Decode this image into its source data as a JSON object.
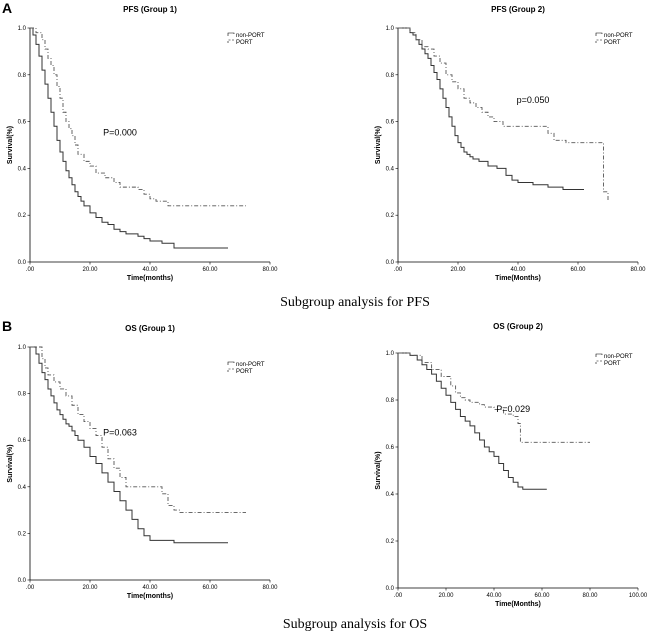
{
  "panels": [
    {
      "letter": "A"
    },
    {
      "letter": "B"
    }
  ],
  "captions": [
    "Subgroup analysis for PFS",
    "Subgroup analysis for OS"
  ],
  "chart_data": [
    {
      "type": "line",
      "title": "PFS (Group 1)",
      "xlabel": "Time(months)",
      "ylabel": "Survival(%)",
      "xlim": [
        0,
        80
      ],
      "ylim": [
        0,
        1
      ],
      "xticks": [
        ".00",
        "20.00",
        "40.00",
        "60.00",
        "80.00"
      ],
      "xtick_values": [
        0,
        20,
        40,
        60,
        80
      ],
      "yticks": [
        "0.0",
        "0.2",
        "0.4",
        "0.6",
        "0.8",
        "1.0"
      ],
      "ytick_values": [
        0,
        0.2,
        0.4,
        0.6,
        0.8,
        1.0
      ],
      "pvalue": "P=0.000",
      "pvalue_at": [
        30,
        0.54
      ],
      "legend": [
        "non-PORT",
        "PORT"
      ],
      "series": [
        {
          "name": "non-PORT",
          "style": "solid",
          "x": [
            0,
            1,
            2,
            3,
            4,
            5,
            6,
            7,
            8,
            9,
            10,
            11,
            12,
            13,
            14,
            15,
            16,
            17,
            18,
            20,
            22,
            24,
            26,
            28,
            30,
            32,
            34,
            36,
            38,
            40,
            44,
            48,
            66
          ],
          "y": [
            1.0,
            0.97,
            0.93,
            0.88,
            0.82,
            0.76,
            0.7,
            0.64,
            0.58,
            0.52,
            0.47,
            0.43,
            0.39,
            0.36,
            0.33,
            0.3,
            0.28,
            0.26,
            0.24,
            0.21,
            0.19,
            0.17,
            0.16,
            0.14,
            0.13,
            0.12,
            0.12,
            0.11,
            0.1,
            0.09,
            0.08,
            0.06,
            0.06
          ]
        },
        {
          "name": "PORT",
          "style": "dashdot",
          "x": [
            0,
            2,
            4,
            5,
            6,
            7,
            8,
            9,
            10,
            11,
            12,
            13,
            14,
            15,
            16,
            18,
            20,
            22,
            25,
            28,
            30,
            33,
            36,
            38,
            40,
            42,
            46,
            50,
            60,
            72
          ],
          "y": [
            1.0,
            0.98,
            0.95,
            0.91,
            0.87,
            0.84,
            0.8,
            0.75,
            0.7,
            0.64,
            0.6,
            0.57,
            0.54,
            0.5,
            0.46,
            0.43,
            0.41,
            0.38,
            0.36,
            0.34,
            0.32,
            0.32,
            0.31,
            0.29,
            0.27,
            0.26,
            0.24,
            0.24,
            0.24,
            0.24
          ]
        }
      ]
    },
    {
      "type": "line",
      "title": "PFS (Group 2)",
      "xlabel": "Time(Months)",
      "ylabel": "Survival(%)",
      "xlim": [
        0,
        80
      ],
      "ylim": [
        0,
        1
      ],
      "xticks": [
        ".00",
        "20.00",
        "40.00",
        "60.00",
        "80.00"
      ],
      "xtick_values": [
        0,
        20,
        40,
        60,
        80
      ],
      "yticks": [
        "0.0",
        "0.2",
        "0.4",
        "0.6",
        "0.8",
        "1.0"
      ],
      "ytick_values": [
        0,
        0.2,
        0.4,
        0.6,
        0.8,
        1.0
      ],
      "pvalue": "p=0.050",
      "pvalue_at": [
        45,
        0.68
      ],
      "legend": [
        "non-PORT",
        "PORT"
      ],
      "series": [
        {
          "name": "non-PORT",
          "style": "solid",
          "x": [
            0,
            3,
            4,
            5,
            6,
            7,
            8,
            9,
            10,
            11,
            12,
            13,
            14,
            15,
            16,
            17,
            18,
            19,
            20,
            21,
            22,
            23,
            24,
            25,
            27,
            30,
            33,
            36,
            38,
            40,
            45,
            50,
            55,
            62
          ],
          "y": [
            1.0,
            1.0,
            0.98,
            0.97,
            0.95,
            0.93,
            0.91,
            0.89,
            0.87,
            0.84,
            0.81,
            0.78,
            0.74,
            0.7,
            0.66,
            0.62,
            0.58,
            0.54,
            0.51,
            0.49,
            0.47,
            0.46,
            0.45,
            0.44,
            0.43,
            0.41,
            0.4,
            0.37,
            0.35,
            0.34,
            0.33,
            0.32,
            0.31,
            0.31
          ]
        },
        {
          "name": "PORT",
          "style": "dashdot",
          "x": [
            0,
            4,
            6,
            8,
            10,
            12,
            14,
            16,
            18,
            20,
            22,
            24,
            26,
            28,
            30,
            32,
            35,
            40,
            45,
            50,
            52,
            56,
            60,
            64,
            68,
            68.5,
            70
          ],
          "y": [
            1.0,
            0.98,
            0.95,
            0.92,
            0.91,
            0.88,
            0.85,
            0.8,
            0.77,
            0.74,
            0.7,
            0.68,
            0.66,
            0.64,
            0.62,
            0.6,
            0.58,
            0.58,
            0.58,
            0.55,
            0.52,
            0.51,
            0.51,
            0.51,
            0.51,
            0.3,
            0.26
          ]
        }
      ]
    },
    {
      "type": "line",
      "title": "OS (Group 1)",
      "xlabel": "Time(months)",
      "ylabel": "Survival(%)",
      "xlim": [
        0,
        80
      ],
      "ylim": [
        0,
        1
      ],
      "xticks": [
        ".00",
        "20.00",
        "40.00",
        "60.00",
        "80.00"
      ],
      "xtick_values": [
        0,
        20,
        40,
        60,
        80
      ],
      "yticks": [
        "0.0",
        "0.2",
        "0.4",
        "0.6",
        "0.8",
        "1.0"
      ],
      "ytick_values": [
        0,
        0.2,
        0.4,
        0.6,
        0.8,
        1.0
      ],
      "pvalue": "P=0.063",
      "pvalue_at": [
        30,
        0.62
      ],
      "legend": [
        "non-PORT",
        "PORT"
      ],
      "series": [
        {
          "name": "non-PORT",
          "style": "solid",
          "x": [
            0,
            2,
            3,
            4,
            5,
            6,
            7,
            8,
            9,
            10,
            11,
            12,
            13,
            14,
            15,
            16,
            18,
            20,
            22,
            24,
            26,
            28,
            30,
            32,
            34,
            36,
            38,
            40,
            44,
            48,
            66
          ],
          "y": [
            1.0,
            0.97,
            0.93,
            0.89,
            0.86,
            0.82,
            0.79,
            0.76,
            0.73,
            0.71,
            0.69,
            0.67,
            0.66,
            0.64,
            0.62,
            0.6,
            0.57,
            0.53,
            0.5,
            0.46,
            0.42,
            0.38,
            0.34,
            0.3,
            0.26,
            0.22,
            0.19,
            0.17,
            0.17,
            0.16,
            0.16
          ]
        },
        {
          "name": "PORT",
          "style": "dashdot",
          "x": [
            0,
            4,
            5,
            6,
            8,
            10,
            12,
            14,
            16,
            18,
            20,
            22,
            24,
            26,
            28,
            30,
            32,
            36,
            40,
            44,
            46,
            48,
            50,
            60,
            72
          ],
          "y": [
            1.0,
            0.95,
            0.91,
            0.88,
            0.85,
            0.82,
            0.79,
            0.75,
            0.71,
            0.68,
            0.65,
            0.62,
            0.57,
            0.52,
            0.48,
            0.44,
            0.4,
            0.4,
            0.4,
            0.37,
            0.32,
            0.3,
            0.29,
            0.29,
            0.29
          ]
        }
      ]
    },
    {
      "type": "line",
      "title": "OS (Group 2)",
      "xlabel": "Time(Months)",
      "ylabel": "Survival(%)",
      "xlim": [
        0,
        100
      ],
      "ylim": [
        0,
        1
      ],
      "xticks": [
        ".00",
        "20.00",
        "40.00",
        "60.00",
        "80.00",
        "100.00"
      ],
      "xtick_values": [
        0,
        20,
        40,
        60,
        80,
        100
      ],
      "yticks": [
        "0.0",
        "0.2",
        "0.4",
        "0.6",
        "0.8",
        "1.0"
      ],
      "ytick_values": [
        0,
        0.2,
        0.4,
        0.6,
        0.8,
        1.0
      ],
      "pvalue": "P=0.029",
      "pvalue_at": [
        48,
        0.75
      ],
      "legend": [
        "non-PORT",
        "PORT"
      ],
      "series": [
        {
          "name": "non-PORT",
          "style": "solid",
          "x": [
            0,
            5,
            8,
            10,
            12,
            14,
            16,
            18,
            20,
            22,
            24,
            26,
            28,
            30,
            32,
            34,
            36,
            38,
            40,
            42,
            44,
            46,
            48,
            50,
            52,
            56,
            62
          ],
          "y": [
            1.0,
            0.99,
            0.97,
            0.95,
            0.93,
            0.91,
            0.88,
            0.85,
            0.82,
            0.79,
            0.76,
            0.73,
            0.71,
            0.69,
            0.66,
            0.63,
            0.6,
            0.58,
            0.56,
            0.53,
            0.5,
            0.47,
            0.45,
            0.43,
            0.42,
            0.42,
            0.42
          ]
        },
        {
          "name": "PORT",
          "style": "dashdot",
          "x": [
            0,
            5,
            10,
            14,
            18,
            22,
            24,
            26,
            28,
            30,
            32,
            34,
            36,
            40,
            44,
            48,
            50,
            51,
            56,
            60,
            70,
            80
          ],
          "y": [
            1.0,
            0.99,
            0.96,
            0.93,
            0.9,
            0.86,
            0.83,
            0.81,
            0.8,
            0.79,
            0.79,
            0.78,
            0.77,
            0.76,
            0.74,
            0.73,
            0.7,
            0.62,
            0.62,
            0.62,
            0.62,
            0.62
          ]
        }
      ]
    }
  ]
}
